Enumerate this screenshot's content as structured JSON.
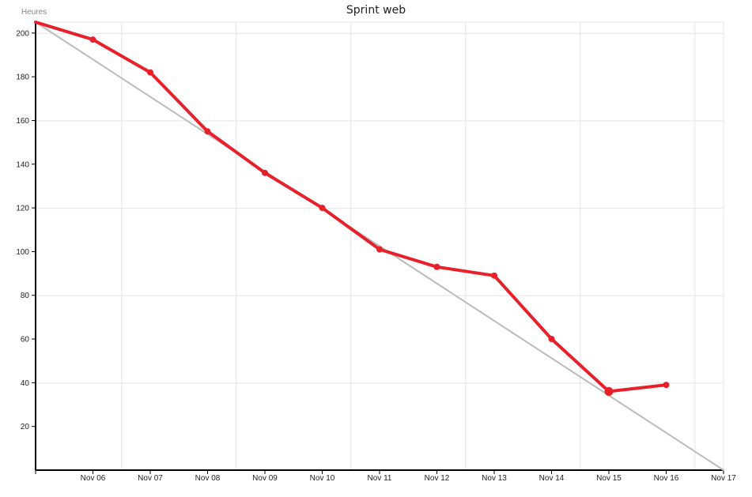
{
  "chart_data": {
    "type": "line",
    "title": "Sprint web",
    "ylabel": "Heures",
    "xlabel": "",
    "x_start": "Nov 05",
    "x_ticks": [
      "Nov 06",
      "Nov 07",
      "Nov 08",
      "Nov 09",
      "Nov 10",
      "Nov 11",
      "Nov 12",
      "Nov 13",
      "Nov 14",
      "Nov 15",
      "Nov 16",
      "Nov 17"
    ],
    "y_ticks": [
      20,
      40,
      60,
      80,
      100,
      120,
      140,
      160,
      180,
      200
    ],
    "ylim": [
      0,
      205
    ],
    "grid": true,
    "series": [
      {
        "role": "ideal",
        "color": "#bbbbbb",
        "x": [
          "Nov 05",
          "Nov 17"
        ],
        "y": [
          205,
          0
        ]
      },
      {
        "role": "actual",
        "color": "#e8202a",
        "x": [
          "Nov 05",
          "Nov 06",
          "Nov 07",
          "Nov 08",
          "Nov 09",
          "Nov 10",
          "Nov 11",
          "Nov 12",
          "Nov 13",
          "Nov 14",
          "Nov 15",
          "Nov 16"
        ],
        "y": [
          205,
          197,
          182,
          155,
          136,
          120,
          101,
          93,
          89,
          60,
          36,
          39
        ]
      }
    ]
  }
}
